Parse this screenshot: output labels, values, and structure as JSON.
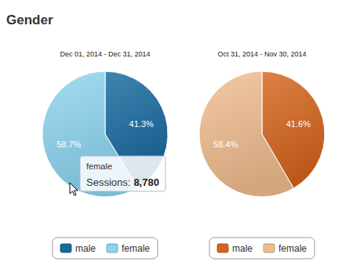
{
  "header": {
    "title": "Gender"
  },
  "chart_data": [
    {
      "type": "pie",
      "subtitle": "Dec 01, 2014 - Dec 31, 2014",
      "categories": [
        "male",
        "female"
      ],
      "values": [
        41.3,
        58.7
      ],
      "value_labels": [
        "41.3%",
        "58.7%"
      ],
      "data_labels": true,
      "colors": [
        "#17699f",
        "#8dd4ef"
      ],
      "legend": "bottom",
      "annotations": [
        {
          "title": "female",
          "text": "Sessions:",
          "value": 8780,
          "value_label": "8,780"
        }
      ]
    },
    {
      "type": "pie",
      "subtitle": "Oct 31, 2014 - Nov 30, 2014",
      "categories": [
        "male",
        "female"
      ],
      "values": [
        41.6,
        58.4
      ],
      "value_labels": [
        "41.6%",
        "58.4%"
      ],
      "data_labels": true,
      "colors": [
        "#d5641c",
        "#f0bd8f"
      ],
      "legend": "bottom"
    }
  ]
}
